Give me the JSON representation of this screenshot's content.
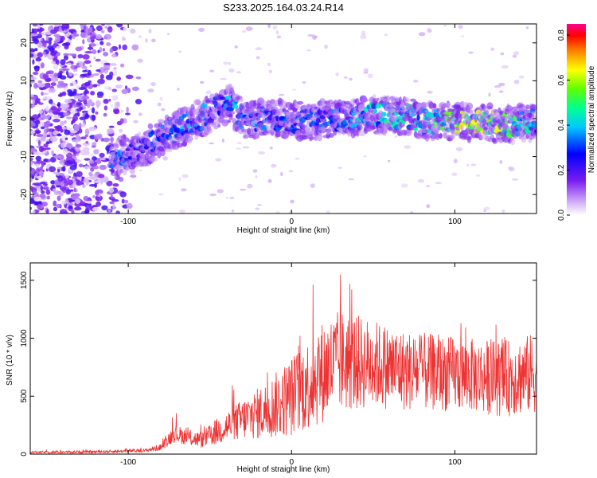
{
  "figure": {
    "title": "S233.2025.164.03.24.R14"
  },
  "chart_data": [
    {
      "type": "heatmap",
      "xlabel": "Height of straight line (km)",
      "ylabel": "Frequency (Hz)",
      "xlim": [
        -160,
        150
      ],
      "ylim": [
        -25,
        25
      ],
      "xticks": [
        -100,
        0,
        100
      ],
      "yticks": [
        -20,
        -10,
        0,
        10,
        20
      ],
      "colorbar": {
        "label": "Normalized spectral amplitude",
        "range": [
          0.0,
          0.85
        ],
        "ticks": [
          0.0,
          0.2,
          0.4,
          0.6,
          0.8
        ]
      },
      "ridge": {
        "description_points_x": [
          -108,
          -95,
          -80,
          -60,
          -48,
          -38,
          -30,
          -10,
          10,
          30,
          50,
          70,
          90,
          110,
          130,
          148
        ],
        "description_points_y": [
          -10,
          -9,
          -5,
          -1,
          2,
          4,
          0,
          0,
          -0.5,
          0,
          1,
          0.5,
          -1,
          -1,
          -1.5,
          -1
        ],
        "amplitude": [
          0.35,
          0.3,
          0.35,
          0.4,
          0.3,
          0.4,
          0.35,
          0.35,
          0.3,
          0.35,
          0.45,
          0.45,
          0.5,
          0.65,
          0.6,
          0.45
        ]
      }
    },
    {
      "type": "line",
      "xlabel": "Height of straight line (km)",
      "ylabel": "SNR (10 * v/v)",
      "xlim": [
        -160,
        150
      ],
      "ylim": [
        0,
        1650
      ],
      "xticks": [
        -100,
        0,
        100
      ],
      "yticks": [
        0,
        500,
        1000,
        1500
      ],
      "color": "#ee3333",
      "envelope": {
        "x": [
          -160,
          -120,
          -90,
          -80,
          -72,
          -65,
          -55,
          -45,
          -30,
          -15,
          0,
          10,
          20,
          30,
          50,
          70,
          90,
          110,
          130,
          150
        ],
        "mean": [
          15,
          20,
          30,
          60,
          180,
          150,
          120,
          200,
          300,
          380,
          500,
          600,
          720,
          800,
          780,
          720,
          700,
          680,
          650,
          700
        ],
        "spread": [
          10,
          12,
          15,
          30,
          80,
          70,
          70,
          120,
          180,
          250,
          350,
          400,
          450,
          450,
          380,
          350,
          330,
          320,
          330,
          350
        ]
      }
    }
  ]
}
